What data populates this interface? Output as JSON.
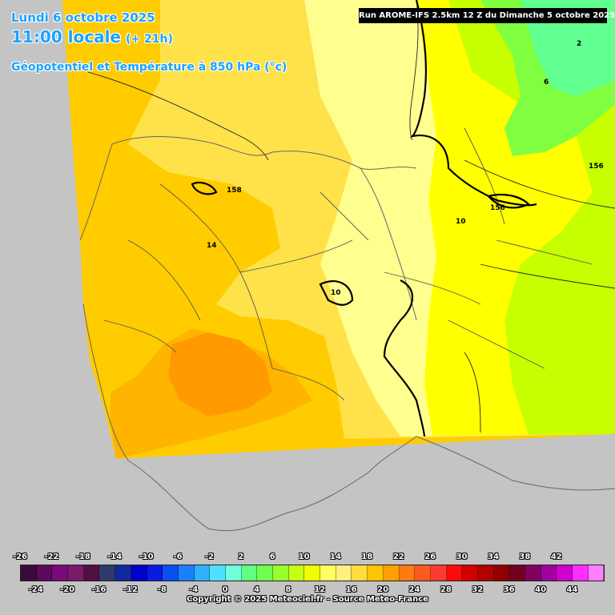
{
  "header": {
    "date": "Lundi 6 octobre 2025",
    "time": "11:00 locale",
    "offset": "(+ 21h)",
    "parameter": "Géopotentiel et Température à 850 hPa (°c)"
  },
  "run_info": "Run AROME-IFS 2.5km 12 Z du Dimanche 5 octobre 2025",
  "contour_labels": [
    "158",
    "14",
    "10",
    "10",
    "156",
    "156",
    "6",
    "2"
  ],
  "legend": {
    "values": [
      -26,
      -24,
      -22,
      -20,
      -18,
      -16,
      -14,
      -12,
      -10,
      -8,
      -6,
      -4,
      -2,
      0,
      2,
      4,
      6,
      8,
      10,
      12,
      14,
      16,
      18,
      20,
      22,
      24,
      26,
      28,
      30,
      32,
      34,
      36,
      38,
      40,
      42,
      44
    ],
    "top_labels": [
      "-26",
      "-22",
      "-18",
      "-14",
      "-10",
      "-6",
      "-2",
      "2",
      "6",
      "10",
      "14",
      "18",
      "22",
      "26",
      "30",
      "34",
      "38",
      "42"
    ],
    "bottom_labels": [
      "-24",
      "-20",
      "-16",
      "-12",
      "-8",
      "-4",
      "0",
      "4",
      "8",
      "12",
      "16",
      "20",
      "24",
      "28",
      "32",
      "36",
      "40",
      "44"
    ],
    "colors": [
      "#3a0a3a",
      "#5a0a5a",
      "#7a0a7a",
      "#7a1a6a",
      "#501040",
      "#303a6a",
      "#102a9a",
      "#0000c8",
      "#0a1ae0",
      "#0a50f0",
      "#1a80ff",
      "#30b0ff",
      "#50e0ff",
      "#70ffd8",
      "#60ff80",
      "#70ff50",
      "#98ff30",
      "#c8ff10",
      "#f0ff00",
      "#ffff60",
      "#fff080",
      "#ffdc40",
      "#ffc400",
      "#ffa000",
      "#ff7a10",
      "#ff5a20",
      "#ff3a30",
      "#ff0a0a",
      "#d00000",
      "#b00000",
      "#900000",
      "#700020",
      "#800060",
      "#a000a0",
      "#d000d0",
      "#ff30ff",
      "#ff80ff"
    ]
  },
  "copyright": "Copyright © 2025 Meteociel.fr - Source Meteo-France",
  "colors": {
    "land_outside": "#c4c4c4",
    "header_text": "#1aa3ff",
    "t14": "#ffcc00",
    "t16": "#ffb400",
    "t12": "#ffe24a",
    "t10": "#ffff90",
    "t8": "#ffff00",
    "t6": "#c8ff00",
    "t4": "#80ff40",
    "t2": "#60ff90"
  }
}
